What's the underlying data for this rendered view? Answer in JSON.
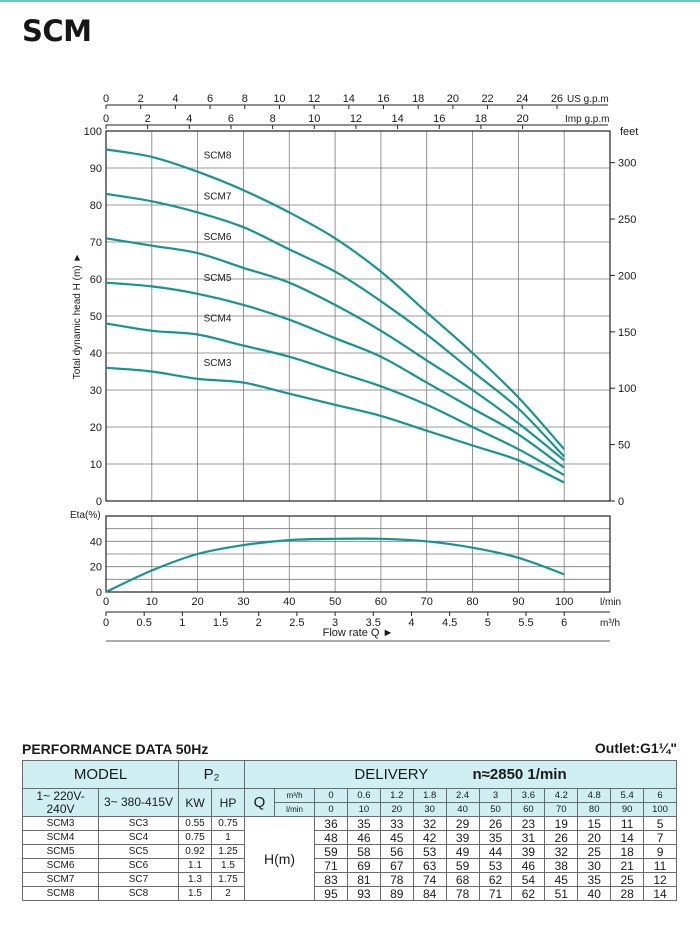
{
  "brand": "SCM",
  "chart_data": [
    {
      "type": "line",
      "xlabel": "Flow rate Q ►",
      "ylabel": "Total dynamic head H (m) ►",
      "x_unit": "l/min",
      "x2_unit": "m³/h",
      "top_axis_unit": "US g.p.m",
      "top_axis2_unit": "Imp g.p.m",
      "right_axis_unit": "feet",
      "xlim": [
        0,
        110
      ],
      "ylim": [
        0,
        100
      ],
      "x_ticks": [
        0,
        10,
        20,
        30,
        40,
        50,
        60,
        70,
        80,
        90,
        100
      ],
      "x2_ticks": [
        "0",
        "0.5",
        "1",
        "1.5",
        "2",
        "2.5",
        "3",
        "3.5",
        "4",
        "4.5",
        "5",
        "5.5",
        "6"
      ],
      "us_gpm_ticks": [
        0,
        2,
        4,
        6,
        8,
        10,
        12,
        14,
        16,
        18,
        20,
        22,
        24,
        26
      ],
      "imp_gpm_ticks": [
        0,
        2,
        4,
        6,
        8,
        10,
        12,
        14,
        16,
        18,
        20
      ],
      "y_ticks": [
        0,
        10,
        20,
        30,
        40,
        50,
        60,
        70,
        80,
        90,
        100
      ],
      "feet_ticks": [
        0,
        50,
        100,
        150,
        200,
        250,
        300
      ],
      "grid": true,
      "series": [
        {
          "name": "SCM3",
          "x": [
            0,
            10,
            20,
            30,
            40,
            50,
            60,
            70,
            80,
            90,
            100
          ],
          "y": [
            36,
            35,
            33,
            32,
            29,
            26,
            23,
            19,
            15,
            11,
            5
          ]
        },
        {
          "name": "SCM4",
          "x": [
            0,
            10,
            20,
            30,
            40,
            50,
            60,
            70,
            80,
            90,
            100
          ],
          "y": [
            48,
            46,
            45,
            42,
            39,
            35,
            31,
            26,
            20,
            14,
            7
          ]
        },
        {
          "name": "SCM5",
          "x": [
            0,
            10,
            20,
            30,
            40,
            50,
            60,
            70,
            80,
            90,
            100
          ],
          "y": [
            59,
            58,
            56,
            53,
            49,
            44,
            39,
            32,
            25,
            18,
            9
          ]
        },
        {
          "name": "SCM6",
          "x": [
            0,
            10,
            20,
            30,
            40,
            50,
            60,
            70,
            80,
            90,
            100
          ],
          "y": [
            71,
            69,
            67,
            63,
            59,
            53,
            46,
            38,
            30,
            21,
            11
          ]
        },
        {
          "name": "SCM7",
          "x": [
            0,
            10,
            20,
            30,
            40,
            50,
            60,
            70,
            80,
            90,
            100
          ],
          "y": [
            83,
            81,
            78,
            74,
            68,
            62,
            54,
            45,
            35,
            25,
            12
          ]
        },
        {
          "name": "SCM8",
          "x": [
            0,
            10,
            20,
            30,
            40,
            50,
            60,
            70,
            80,
            90,
            100
          ],
          "y": [
            95,
            93,
            89,
            84,
            78,
            71,
            62,
            51,
            40,
            28,
            14
          ]
        }
      ]
    },
    {
      "type": "line",
      "ylabel": "Eta(%)",
      "xlim": [
        0,
        110
      ],
      "ylim": [
        0,
        60
      ],
      "y_ticks": [
        0,
        20,
        40
      ],
      "grid": true,
      "series": [
        {
          "x": [
            0,
            10,
            20,
            30,
            40,
            50,
            60,
            70,
            80,
            90,
            100
          ],
          "y": [
            0,
            17,
            30,
            37,
            41,
            42,
            42,
            40,
            35,
            27,
            14
          ]
        }
      ]
    }
  ],
  "performance": {
    "title": "PERFORMANCE DATA 50Hz",
    "outlet": "Outlet:G1¼\"",
    "model_label": "MODEL",
    "p2_label": "P₂",
    "delivery_label": "DELIVERY",
    "speed_label": "n≈2850  1/min",
    "col_1phase": "1~ 220V-240V",
    "col_3phase": "3~ 380-415V",
    "kw_label": "KW",
    "hp_label": "HP",
    "q_label": "Q",
    "q_unit_m3h": "m³/h",
    "q_unit_lmin": "l/min",
    "h_label": "H(m)",
    "q_m3h": [
      "0",
      "0.6",
      "1.2",
      "1.8",
      "2.4",
      "3",
      "3.6",
      "4.2",
      "4.8",
      "5.4",
      "6"
    ],
    "q_lmin": [
      "0",
      "10",
      "20",
      "30",
      "40",
      "50",
      "60",
      "70",
      "80",
      "90",
      "100"
    ],
    "rows": [
      {
        "model1": "SCM3",
        "model3": "SC3",
        "kw": "0.55",
        "hp": "0.75",
        "h": [
          "36",
          "35",
          "33",
          "32",
          "29",
          "26",
          "23",
          "19",
          "15",
          "11",
          "5"
        ]
      },
      {
        "model1": "SCM4",
        "model3": "SC4",
        "kw": "0.75",
        "hp": "1",
        "h": [
          "48",
          "46",
          "45",
          "42",
          "39",
          "35",
          "31",
          "26",
          "20",
          "14",
          "7"
        ]
      },
      {
        "model1": "SCM5",
        "model3": "SC5",
        "kw": "0.92",
        "hp": "1.25",
        "h": [
          "59",
          "58",
          "56",
          "53",
          "49",
          "44",
          "39",
          "32",
          "25",
          "18",
          "9"
        ]
      },
      {
        "model1": "SCM6",
        "model3": "SC6",
        "kw": "1.1",
        "hp": "1.5",
        "h": [
          "71",
          "69",
          "67",
          "63",
          "59",
          "53",
          "46",
          "38",
          "30",
          "21",
          "11"
        ]
      },
      {
        "model1": "SCM7",
        "model3": "SC7",
        "kw": "1.3",
        "hp": "1.75",
        "h": [
          "83",
          "81",
          "78",
          "74",
          "68",
          "62",
          "54",
          "45",
          "35",
          "25",
          "12"
        ]
      },
      {
        "model1": "SCM8",
        "model3": "SC8",
        "kw": "1.5",
        "hp": "2",
        "h": [
          "95",
          "93",
          "89",
          "84",
          "78",
          "71",
          "62",
          "51",
          "40",
          "28",
          "14"
        ]
      }
    ]
  },
  "colors": {
    "curve": "#16958f",
    "grid": "#7a7a7a",
    "header_fill": "#cfeff3",
    "accent_line": "#6fc4c9"
  }
}
